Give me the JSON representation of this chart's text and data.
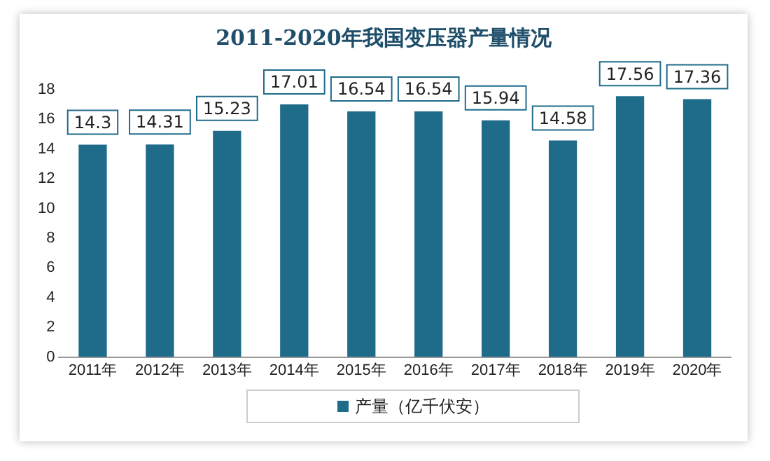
{
  "chart_data": {
    "type": "bar",
    "title": "2011-2020年我国变压器产量情况",
    "categories": [
      "2011年",
      "2012年",
      "2013年",
      "2014年",
      "2015年",
      "2016年",
      "2017年",
      "2018年",
      "2019年",
      "2020年"
    ],
    "series": [
      {
        "name": "产量（亿千伏安）",
        "color": "#1f6b8a",
        "values": [
          14.3,
          14.31,
          15.23,
          17.01,
          16.54,
          16.54,
          15.94,
          14.58,
          17.56,
          17.36
        ]
      }
    ],
    "ylim": [
      0,
      18
    ],
    "yticks": [
      0,
      2,
      4,
      6,
      8,
      10,
      12,
      14,
      16,
      18
    ],
    "grid": false,
    "legend": "bottom",
    "data_labels": true
  }
}
